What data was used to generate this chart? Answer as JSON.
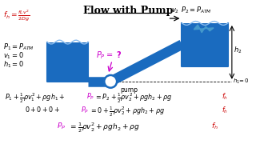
{
  "title": "Flow with Pump",
  "bg_color": "#ffffff",
  "title_color": "#000000",
  "blue_color": "#1a6bbf",
  "red_color": "#cc0000",
  "magenta_color": "#cc00cc",
  "black_color": "#000000"
}
